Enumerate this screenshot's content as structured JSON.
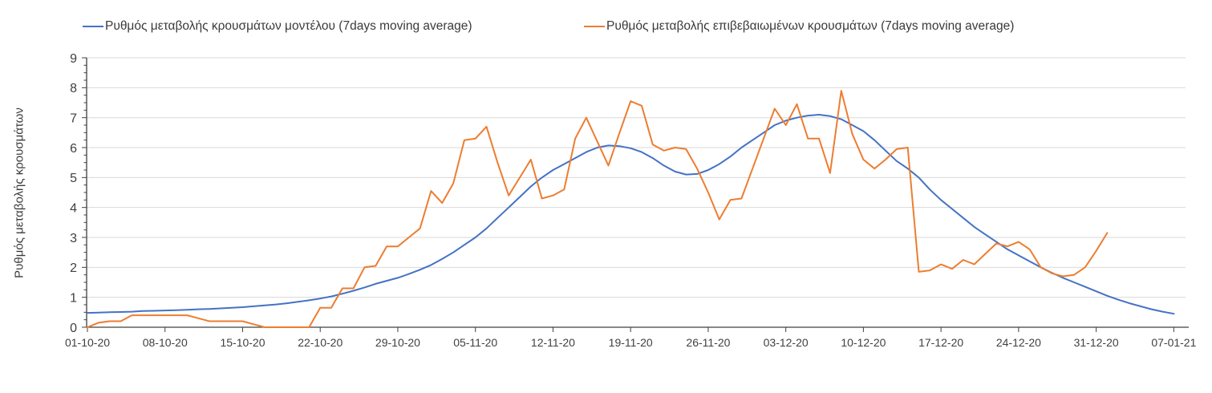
{
  "legend": {
    "model_label": "Ρυθμός μεταβολής κρουσμάτων μοντέλου (7days moving average)",
    "confirmed_label": "Ρυθμός μεταβολής επιβεβαιωμένων κρουσμάτων (7days moving average)"
  },
  "axes": {
    "y_label": "Ρυθμός μεταβολής κρουσμάτων"
  },
  "colors": {
    "model_line": "#4472c4",
    "confirmed_line": "#ed7d31",
    "gridline": "#d9d9d9",
    "axis": "#404040",
    "tick_text": "#404040"
  },
  "chart_data": {
    "type": "line",
    "title": "",
    "xlabel": "",
    "ylabel": "Ρυθμός μεταβολής κρουσμάτων",
    "ylim": [
      0,
      9
    ],
    "grid": "horizontal",
    "legend_position": "top",
    "y_tick_labels": [
      "0",
      "1",
      "2",
      "3",
      "4",
      "5",
      "6",
      "7",
      "8",
      "9"
    ],
    "y_minor_tick_step": 0.25,
    "x_tick_labels": [
      "01-10-20",
      "08-10-20",
      "15-10-20",
      "22-10-20",
      "29-10-20",
      "05-11-20",
      "12-11-20",
      "19-11-20",
      "26-11-20",
      "03-12-20",
      "10-12-20",
      "17-12-20",
      "24-12-20",
      "31-12-20",
      "07-01-21"
    ],
    "x_tick_interval_days": 7,
    "x_start_date": "01-10-20",
    "series": [
      {
        "name": "Ρυθμός μεταβολής κρουσμάτων μοντέλου (7days moving average)",
        "color": "#4472c4",
        "start_day": 0,
        "values": [
          0.48,
          0.49,
          0.5,
          0.51,
          0.52,
          0.54,
          0.55,
          0.56,
          0.57,
          0.58,
          0.6,
          0.61,
          0.63,
          0.65,
          0.67,
          0.7,
          0.73,
          0.76,
          0.8,
          0.85,
          0.9,
          0.96,
          1.03,
          1.12,
          1.22,
          1.33,
          1.45,
          1.55,
          1.65,
          1.78,
          1.92,
          2.08,
          2.28,
          2.5,
          2.75,
          3.0,
          3.3,
          3.65,
          4.0,
          4.35,
          4.7,
          5.0,
          5.25,
          5.45,
          5.65,
          5.85,
          6.0,
          6.07,
          6.05,
          5.98,
          5.85,
          5.65,
          5.4,
          5.2,
          5.1,
          5.12,
          5.25,
          5.45,
          5.7,
          6.0,
          6.25,
          6.5,
          6.75,
          6.9,
          7.0,
          7.07,
          7.1,
          7.05,
          6.95,
          6.75,
          6.55,
          6.25,
          5.9,
          5.55,
          5.3,
          5.0,
          4.6,
          4.25,
          3.95,
          3.65,
          3.35,
          3.1,
          2.85,
          2.6,
          2.4,
          2.2,
          2.0,
          1.82,
          1.65,
          1.5,
          1.35,
          1.2,
          1.05,
          0.92,
          0.8,
          0.7,
          0.6,
          0.52,
          0.45
        ]
      },
      {
        "name": "Ρυθμός μεταβολής επιβεβαιωμένων κρουσμάτων (7days moving average)",
        "color": "#ed7d31",
        "start_day": 0,
        "values": [
          0.0,
          0.15,
          0.2,
          0.2,
          0.4,
          0.4,
          0.4,
          0.4,
          0.4,
          0.4,
          0.3,
          0.2,
          0.2,
          0.2,
          0.2,
          0.1,
          0.0,
          0.0,
          0.0,
          0.0,
          0.0,
          0.65,
          0.65,
          1.3,
          1.3,
          2.0,
          2.05,
          2.7,
          2.7,
          3.0,
          3.3,
          4.55,
          4.15,
          4.8,
          6.25,
          6.3,
          6.7,
          5.5,
          4.4,
          5.0,
          5.6,
          4.3,
          4.4,
          4.6,
          6.3,
          7.0,
          6.2,
          5.4,
          6.5,
          7.55,
          7.4,
          6.1,
          5.9,
          6.0,
          5.95,
          5.3,
          4.5,
          3.6,
          4.25,
          4.3,
          5.3,
          6.3,
          7.3,
          6.75,
          7.45,
          6.3,
          6.3,
          5.15,
          7.9,
          6.45,
          5.6,
          5.3,
          5.6,
          5.95,
          6.0,
          1.85,
          1.9,
          2.1,
          1.95,
          2.25,
          2.1,
          2.45,
          2.8,
          2.7,
          2.85,
          2.6,
          2.0,
          1.8,
          1.7,
          1.75,
          2.0,
          2.55,
          3.15
        ]
      }
    ]
  }
}
